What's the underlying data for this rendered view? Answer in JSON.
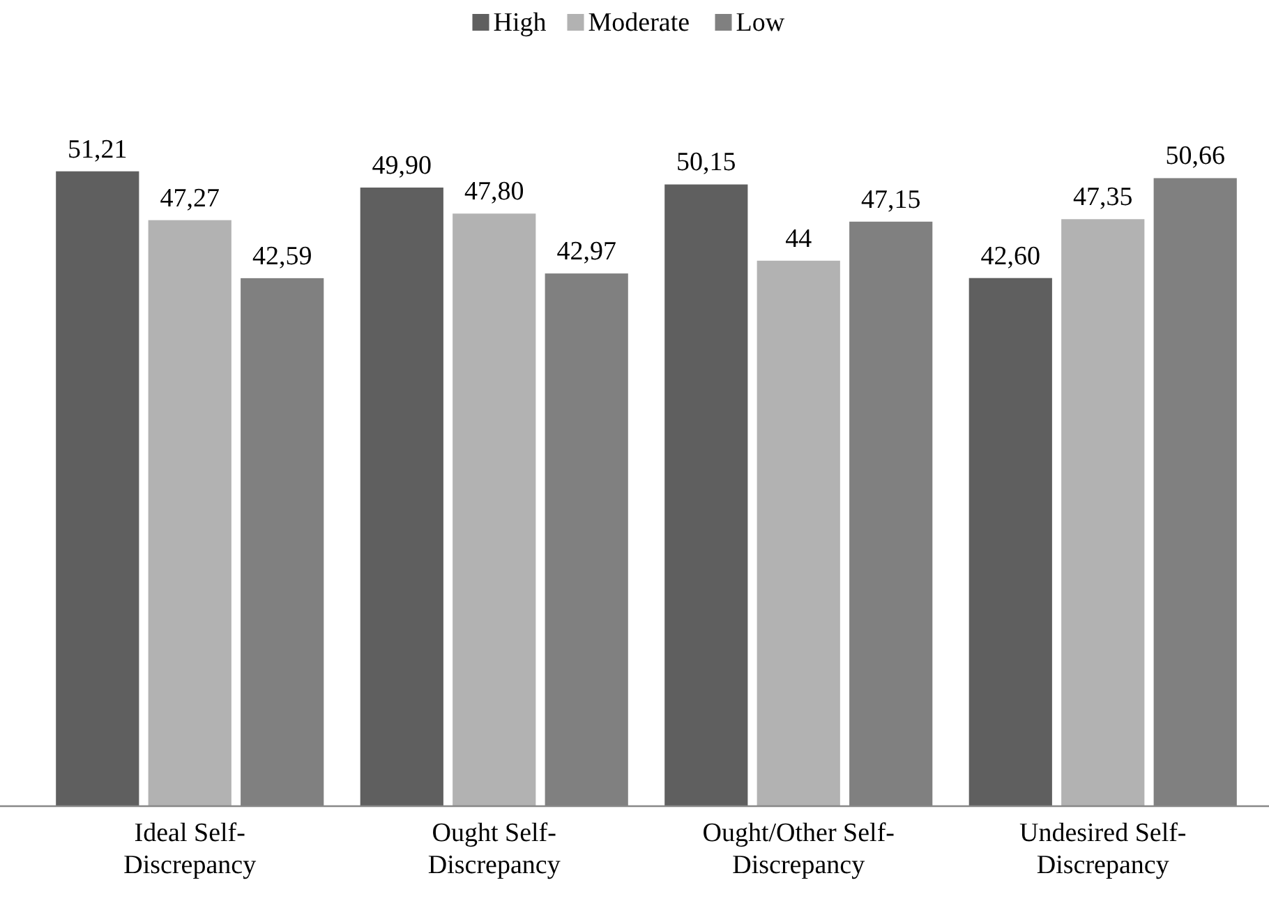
{
  "chart_data": {
    "type": "bar",
    "categories": [
      "Ideal Self-Discrepancy",
      "Ought Self-Discrepancy",
      "Ought/Other Self-Discrepancy",
      "Undesired Self-Discrepancy"
    ],
    "series": [
      {
        "name": "High",
        "color": "#5f5f5f",
        "values": [
          51.21,
          49.9,
          50.15,
          42.6
        ],
        "value_labels": [
          "51,21",
          "49,90",
          "50,15",
          "42,60"
        ]
      },
      {
        "name": "Moderate",
        "color": "#b2b2b2",
        "values": [
          47.27,
          47.8,
          44,
          47.35
        ],
        "value_labels": [
          "47,27",
          "47,80",
          "44",
          "47,35"
        ]
      },
      {
        "name": "Low",
        "color": "#808080",
        "values": [
          42.59,
          42.97,
          47.15,
          50.66
        ],
        "value_labels": [
          "42,59",
          "42,97",
          "47,15",
          "50,66"
        ]
      }
    ],
    "legend": "top"
  }
}
